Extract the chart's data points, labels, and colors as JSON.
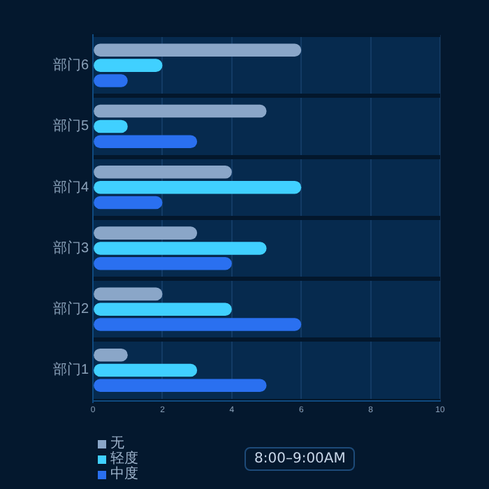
{
  "chart_data": {
    "type": "bar",
    "orientation": "horizontal",
    "categories": [
      "部门6",
      "部门5",
      "部门4",
      "部门3",
      "部门2",
      "部门1"
    ],
    "series": [
      {
        "name": "无",
        "color": "#8aa6c8",
        "values": [
          6,
          5,
          4,
          3,
          2,
          1
        ]
      },
      {
        "name": "轻度",
        "color": "#40d0ff",
        "values": [
          2,
          1,
          6,
          5,
          4,
          3
        ]
      },
      {
        "name": "中度",
        "color": "#2a70f0",
        "values": [
          1,
          3,
          2,
          4,
          6,
          5
        ]
      }
    ],
    "xlim": [
      0,
      10
    ],
    "xticks": [
      0,
      2,
      4,
      6,
      8,
      10
    ],
    "grid": true,
    "legend": "bottom left",
    "annotations": [
      "8:00–9:00AM"
    ]
  }
}
